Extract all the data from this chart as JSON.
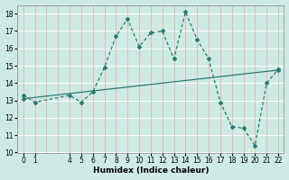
{
  "xlabel": "Humidex (Indice chaleur)",
  "line1_x": [
    0,
    1,
    4,
    5,
    6,
    7,
    8,
    9,
    10,
    11,
    12,
    13,
    14,
    15,
    16,
    17,
    18,
    19,
    20,
    21,
    22
  ],
  "line1_y": [
    13.3,
    12.9,
    13.3,
    12.9,
    13.5,
    14.9,
    16.7,
    17.7,
    16.1,
    16.9,
    17.0,
    15.4,
    18.1,
    16.5,
    15.4,
    12.9,
    11.5,
    11.4,
    10.4,
    14.0,
    14.8
  ],
  "line2_x": [
    0,
    22
  ],
  "line2_y": [
    13.1,
    14.75
  ],
  "line_color": "#2a7b6f",
  "bg_color": "#ceeae5",
  "grid_color_h": "#ffffff",
  "grid_color_v": "#e8b8b8",
  "ylim": [
    10,
    18.5
  ],
  "xlim": [
    -0.5,
    22.5
  ],
  "yticks": [
    10,
    11,
    12,
    13,
    14,
    15,
    16,
    17,
    18
  ],
  "xticks": [
    0,
    1,
    4,
    5,
    6,
    7,
    8,
    9,
    10,
    11,
    12,
    13,
    14,
    15,
    16,
    17,
    18,
    19,
    20,
    21,
    22
  ],
  "xlabel_fontsize": 6.5,
  "tick_fontsize": 5.5
}
